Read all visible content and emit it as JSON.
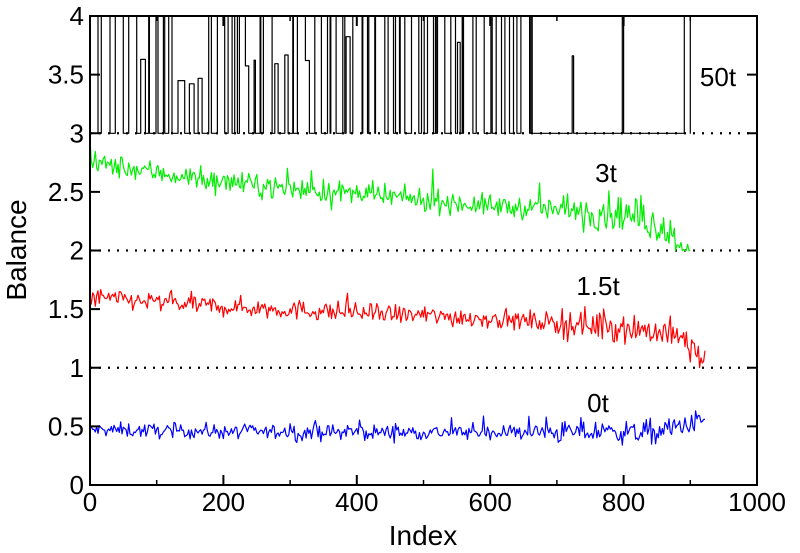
{
  "chart_data": {
    "type": "line",
    "xlabel": "Index",
    "ylabel": "Balance",
    "xlim": [
      0,
      1000
    ],
    "ylim": [
      0,
      4
    ],
    "x_ticks": [
      "0",
      "200",
      "400",
      "600",
      "800",
      "1000"
    ],
    "y_ticks": [
      "0",
      "0.5",
      "1",
      "1.5",
      "2",
      "2.5",
      "3",
      "3.5",
      "4"
    ],
    "reference_lines": [
      1,
      2,
      3
    ],
    "series": [
      {
        "name": "0t",
        "color": "#0000ff",
        "x_range": [
          0,
          922
        ],
        "baseline": 0,
        "trend": [
          [
            0,
            0.47
          ],
          [
            300,
            0.45
          ],
          [
            600,
            0.45
          ],
          [
            850,
            0.45
          ],
          [
            922,
            0.55
          ]
        ],
        "noise": 0.06,
        "min": 0.2,
        "max": 0.82
      },
      {
        "name": "1.5t",
        "color": "#ff0000",
        "x_range": [
          0,
          922
        ],
        "baseline": 1,
        "trend": [
          [
            0,
            1.6
          ],
          [
            200,
            1.52
          ],
          [
            400,
            1.47
          ],
          [
            600,
            1.42
          ],
          [
            800,
            1.35
          ],
          [
            880,
            1.28
          ],
          [
            922,
            1.05
          ]
        ],
        "noise": 0.08,
        "min": 1.0,
        "max": 1.9
      },
      {
        "name": "3t",
        "color": "#00ee00",
        "x_range": [
          0,
          900
        ],
        "baseline": 2,
        "trend": [
          [
            0,
            2.75
          ],
          [
            200,
            2.58
          ],
          [
            400,
            2.48
          ],
          [
            600,
            2.38
          ],
          [
            800,
            2.32
          ],
          [
            860,
            2.2
          ],
          [
            900,
            2.0
          ]
        ],
        "noise": 0.09,
        "min": 2.0,
        "max": 2.95
      },
      {
        "name": "50t",
        "color": "#000000",
        "x_range": [
          0,
          900
        ],
        "baseline": 3,
        "levels": [
          3,
          4
        ],
        "min": 3,
        "max": 4
      }
    ]
  }
}
